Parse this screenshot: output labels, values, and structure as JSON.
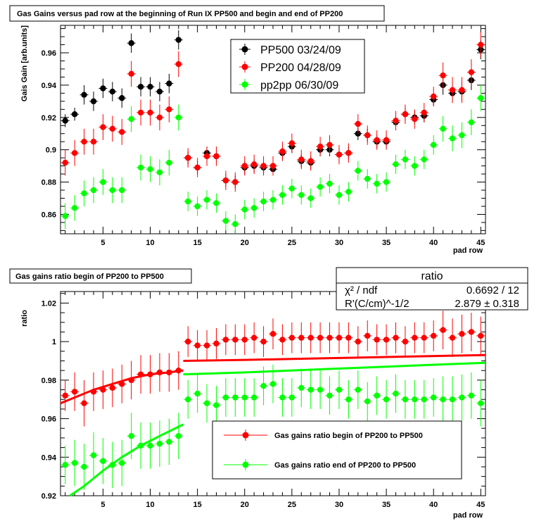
{
  "chart_data": [
    {
      "type": "scatter",
      "title": "Gas Gains versus pad row at the beginning of Run IX PP500 and begin and end of PP200",
      "xlabel": "pad row",
      "ylabel": "Gais Gain [arb.units]",
      "xlim": [
        0.5,
        45.5
      ],
      "ylim": [
        0.848,
        0.977
      ],
      "xticks": [
        5,
        10,
        15,
        20,
        25,
        30,
        35,
        40,
        45
      ],
      "yticks": [
        0.86,
        0.88,
        0.9,
        0.92,
        0.94,
        0.96
      ],
      "ytick_labels": [
        "0.86",
        "0.88",
        "0.9",
        "0.92",
        "0.94",
        "0.96"
      ],
      "legend_position": "top-center",
      "x": [
        1,
        2,
        3,
        4,
        5,
        6,
        7,
        8,
        9,
        10,
        11,
        12,
        13,
        14,
        15,
        16,
        17,
        18,
        19,
        20,
        21,
        22,
        23,
        24,
        25,
        26,
        27,
        28,
        29,
        30,
        31,
        32,
        33,
        34,
        35,
        36,
        37,
        38,
        39,
        40,
        41,
        42,
        43,
        44,
        45
      ],
      "series": [
        {
          "name": "PP500 03/24/09",
          "color": "#000000",
          "values": [
            0.918,
            0.922,
            0.934,
            0.93,
            0.938,
            0.936,
            0.932,
            0.966,
            0.939,
            0.939,
            0.936,
            0.941,
            0.968,
            0.895,
            0.889,
            0.898,
            0.896,
            0.881,
            0.88,
            0.889,
            0.89,
            0.889,
            0.888,
            0.898,
            0.902,
            0.893,
            0.892,
            0.9,
            0.9,
            0.897,
            0.898,
            0.91,
            0.909,
            0.905,
            0.905,
            0.917,
            0.922,
            0.92,
            0.921,
            0.931,
            0.94,
            0.935,
            0.936,
            0.943,
            0.962
          ],
          "errors": [
            0.004,
            0.004,
            0.006,
            0.006,
            0.006,
            0.006,
            0.006,
            0.006,
            0.006,
            0.006,
            0.006,
            0.006,
            0.006,
            0.004,
            0.004,
            0.004,
            0.004,
            0.004,
            0.004,
            0.004,
            0.004,
            0.004,
            0.004,
            0.004,
            0.004,
            0.004,
            0.004,
            0.004,
            0.004,
            0.004,
            0.004,
            0.004,
            0.004,
            0.004,
            0.004,
            0.004,
            0.004,
            0.004,
            0.004,
            0.004,
            0.006,
            0.006,
            0.006,
            0.006,
            0.006
          ]
        },
        {
          "name": "PP200 04/28/09",
          "color": "#ff0000",
          "values": [
            0.892,
            0.898,
            0.905,
            0.905,
            0.914,
            0.913,
            0.911,
            0.947,
            0.923,
            0.923,
            0.92,
            0.925,
            0.953,
            0.895,
            0.889,
            0.896,
            0.896,
            0.881,
            0.88,
            0.89,
            0.891,
            0.89,
            0.89,
            0.899,
            0.904,
            0.894,
            0.893,
            0.902,
            0.903,
            0.897,
            0.898,
            0.916,
            0.909,
            0.906,
            0.906,
            0.918,
            0.922,
            0.919,
            0.923,
            0.933,
            0.946,
            0.937,
            0.937,
            0.948,
            0.965
          ],
          "errors": [
            0.008,
            0.008,
            0.008,
            0.008,
            0.008,
            0.008,
            0.008,
            0.008,
            0.008,
            0.008,
            0.008,
            0.008,
            0.008,
            0.006,
            0.006,
            0.006,
            0.006,
            0.006,
            0.006,
            0.006,
            0.006,
            0.006,
            0.006,
            0.006,
            0.006,
            0.006,
            0.006,
            0.006,
            0.006,
            0.006,
            0.006,
            0.006,
            0.006,
            0.006,
            0.006,
            0.006,
            0.006,
            0.006,
            0.006,
            0.006,
            0.008,
            0.008,
            0.008,
            0.008,
            0.008
          ]
        },
        {
          "name": "pp2pp 06/30/09",
          "color": "#00ff00",
          "values": [
            0.859,
            0.864,
            0.873,
            0.875,
            0.88,
            0.875,
            0.875,
            0.919,
            0.889,
            0.888,
            0.886,
            0.892,
            0.92,
            0.868,
            0.865,
            0.869,
            0.867,
            0.856,
            0.854,
            0.863,
            0.864,
            0.868,
            0.869,
            0.872,
            0.876,
            0.872,
            0.87,
            0.877,
            0.879,
            0.872,
            0.874,
            0.887,
            0.882,
            0.879,
            0.88,
            0.891,
            0.894,
            0.89,
            0.894,
            0.903,
            0.913,
            0.907,
            0.909,
            0.917,
            0.932
          ],
          "errors": [
            0.008,
            0.008,
            0.008,
            0.008,
            0.008,
            0.008,
            0.008,
            0.008,
            0.008,
            0.008,
            0.008,
            0.008,
            0.008,
            0.006,
            0.006,
            0.006,
            0.006,
            0.006,
            0.006,
            0.006,
            0.006,
            0.006,
            0.006,
            0.006,
            0.006,
            0.006,
            0.006,
            0.006,
            0.006,
            0.006,
            0.006,
            0.006,
            0.006,
            0.006,
            0.006,
            0.006,
            0.006,
            0.006,
            0.006,
            0.006,
            0.008,
            0.008,
            0.008,
            0.008,
            0.008
          ]
        }
      ]
    },
    {
      "type": "scatter",
      "title": "Gas gains ratio begin of PP200 to PP500",
      "xlabel": "pad row",
      "ylabel": "ratio",
      "xlim": [
        0.5,
        45.5
      ],
      "ylim": [
        0.92,
        1.026
      ],
      "xticks": [
        5,
        10,
        15,
        20,
        25,
        30,
        35,
        40,
        45
      ],
      "yticks": [
        0.92,
        0.94,
        0.96,
        0.98,
        1.0,
        1.02
      ],
      "ytick_labels": [
        "0.92",
        "0.94",
        "0.96",
        "0.98",
        "1",
        "1.02"
      ],
      "legend_position": "bottom-right",
      "stats": {
        "header": "ratio",
        "rows": [
          {
            "label": "χ² / ndf",
            "value": "0.6692 / 12"
          },
          {
            "label": "R'(C/cm)^-1/2",
            "value": "2.879 ± 0.318"
          }
        ]
      },
      "x": [
        1,
        2,
        3,
        4,
        5,
        6,
        7,
        8,
        9,
        10,
        11,
        12,
        13,
        14,
        15,
        16,
        17,
        18,
        19,
        20,
        21,
        22,
        23,
        24,
        25,
        26,
        27,
        28,
        29,
        30,
        31,
        32,
        33,
        34,
        35,
        36,
        37,
        38,
        39,
        40,
        41,
        42,
        43,
        44,
        45
      ],
      "series": [
        {
          "name": "Gas gains ratio begin of PP200 to PP500",
          "color": "#ff0000",
          "values": [
            0.972,
            0.974,
            0.968,
            0.974,
            0.975,
            0.976,
            0.978,
            0.98,
            0.983,
            0.983,
            0.984,
            0.984,
            0.985,
            1.0,
            0.998,
            0.998,
            0.999,
            1.001,
            1.001,
            1.001,
            1.002,
            1.0,
            1.004,
            1.001,
            1.002,
            1.002,
            1.002,
            1.002,
            1.002,
            1.002,
            1.002,
            1.0,
            1.003,
            1.001,
            1.001,
            1.002,
            1.0,
            1.002,
            1.002,
            1.003,
            1.006,
            1.002,
            1.004,
            1.005,
            1.003
          ],
          "errors": [
            0.008,
            0.01,
            0.012,
            0.01,
            0.01,
            0.01,
            0.01,
            0.01,
            0.01,
            0.01,
            0.01,
            0.01,
            0.01,
            0.008,
            0.008,
            0.008,
            0.008,
            0.008,
            0.008,
            0.008,
            0.008,
            0.008,
            0.008,
            0.008,
            0.008,
            0.008,
            0.008,
            0.008,
            0.008,
            0.008,
            0.008,
            0.008,
            0.008,
            0.008,
            0.008,
            0.008,
            0.008,
            0.008,
            0.008,
            0.008,
            0.01,
            0.01,
            0.01,
            0.01,
            0.01
          ],
          "fit_segments": [
            {
              "x": [
                0.5,
                2,
                4,
                6,
                8,
                10,
                12,
                13.5
              ],
              "y": [
                0.968,
                0.971,
                0.975,
                0.978,
                0.981,
                0.983,
                0.984,
                0.985
              ]
            },
            {
              "x": [
                13.5,
                20,
                25,
                30,
                35,
                40,
                45.5
              ],
              "y": [
                0.99,
                0.9905,
                0.991,
                0.9915,
                0.992,
                0.9925,
                0.993
              ]
            }
          ]
        },
        {
          "name": "Gas gains ratio end of PP200 to PP500",
          "color": "#00ff00",
          "values": [
            0.936,
            0.937,
            0.935,
            0.941,
            0.938,
            0.936,
            0.937,
            0.951,
            0.946,
            0.946,
            0.947,
            0.948,
            0.951,
            0.97,
            0.973,
            0.968,
            0.967,
            0.971,
            0.971,
            0.971,
            0.971,
            0.977,
            0.978,
            0.971,
            0.971,
            0.976,
            0.975,
            0.975,
            0.972,
            0.975,
            0.97,
            0.975,
            0.969,
            0.972,
            0.97,
            0.973,
            0.97,
            0.97,
            0.97,
            0.971,
            0.97,
            0.97,
            0.971,
            0.972,
            0.968
          ],
          "errors": [
            0.01,
            0.012,
            0.012,
            0.012,
            0.012,
            0.012,
            0.012,
            0.012,
            0.012,
            0.012,
            0.012,
            0.012,
            0.012,
            0.01,
            0.01,
            0.01,
            0.01,
            0.01,
            0.01,
            0.01,
            0.01,
            0.01,
            0.01,
            0.01,
            0.01,
            0.01,
            0.01,
            0.01,
            0.01,
            0.01,
            0.01,
            0.01,
            0.01,
            0.01,
            0.01,
            0.01,
            0.01,
            0.01,
            0.01,
            0.01,
            0.012,
            0.012,
            0.012,
            0.012,
            0.012
          ],
          "fit_segments": [
            {
              "x": [
                1.5,
                3,
                5,
                7,
                9,
                11,
                13.5
              ],
              "y": [
                0.92,
                0.925,
                0.933,
                0.94,
                0.946,
                0.951,
                0.957
              ]
            },
            {
              "x": [
                13.5,
                20,
                25,
                30,
                35,
                40,
                45.5
              ],
              "y": [
                0.983,
                0.984,
                0.985,
                0.986,
                0.987,
                0.988,
                0.989
              ]
            }
          ]
        }
      ]
    }
  ]
}
